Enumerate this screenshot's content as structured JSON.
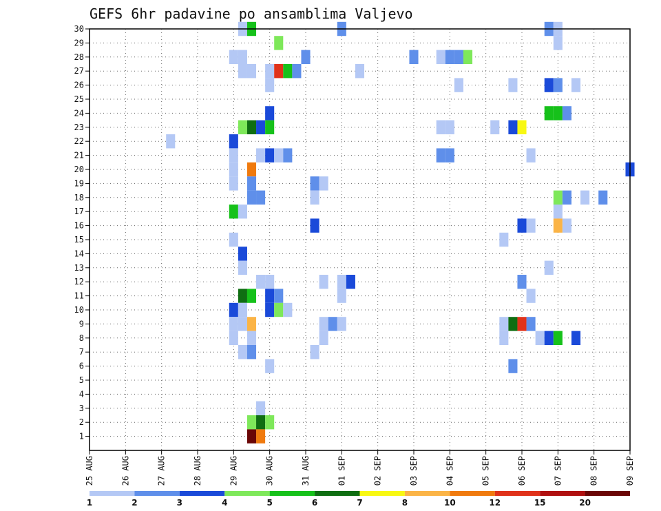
{
  "chart_data": {
    "type": "heatmap",
    "title": "GEFS 6hr padavine po ansamblima Valjevo",
    "x_ticks": [
      "25 AUG",
      "26 AUG",
      "27 AUG",
      "28 AUG",
      "29 AUG",
      "30 AUG",
      "31 AUG",
      "01 SEP",
      "02 SEP",
      "03 SEP",
      "04 SEP",
      "05 SEP",
      "06 SEP",
      "07 SEP",
      "08 SEP",
      "09 SEP"
    ],
    "y_ticks": [
      "1",
      "2",
      "3",
      "4",
      "5",
      "6",
      "7",
      "8",
      "9",
      "10",
      "11",
      "12",
      "13",
      "14",
      "15",
      "16",
      "17",
      "18",
      "19",
      "20",
      "21",
      "22",
      "23",
      "24",
      "25",
      "26",
      "27",
      "28",
      "29",
      "30"
    ],
    "x_range_days": [
      0,
      15
    ],
    "y_range_members": [
      0,
      30
    ],
    "grid": true,
    "legend_position": "bottom",
    "levels": [
      "1",
      "2",
      "3",
      "4",
      "5",
      "6",
      "7",
      "8",
      "10",
      "12",
      "15",
      "20"
    ],
    "level_colors": [
      "#b4c8f5",
      "#5f8fea",
      "#1a4ad9",
      "#7ee85a",
      "#16c11a",
      "#0f6e12",
      "#f8f812",
      "#fbb446",
      "#f07a0e",
      "#e0321a",
      "#b01010",
      "#6a0606"
    ],
    "cells": [
      {
        "member": 30,
        "day": 4.25,
        "level": 0
      },
      {
        "member": 30,
        "day": 4.5,
        "level": 4
      },
      {
        "member": 30,
        "day": 7,
        "level": 1
      },
      {
        "member": 30,
        "day": 12.75,
        "level": 1
      },
      {
        "member": 30,
        "day": 13,
        "level": 0
      },
      {
        "member": 29,
        "day": 5.25,
        "level": 3
      },
      {
        "member": 29,
        "day": 13,
        "level": 0
      },
      {
        "member": 28,
        "day": 4,
        "level": 0
      },
      {
        "member": 28,
        "day": 4.25,
        "level": 0
      },
      {
        "member": 28,
        "day": 6,
        "level": 1
      },
      {
        "member": 28,
        "day": 9,
        "level": 1
      },
      {
        "member": 28,
        "day": 9.75,
        "level": 0
      },
      {
        "member": 28,
        "day": 10,
        "level": 1
      },
      {
        "member": 28,
        "day": 10.25,
        "level": 1
      },
      {
        "member": 28,
        "day": 10.5,
        "level": 3
      },
      {
        "member": 27,
        "day": 4.25,
        "level": 0
      },
      {
        "member": 27,
        "day": 4.5,
        "level": 0
      },
      {
        "member": 27,
        "day": 5,
        "level": 0
      },
      {
        "member": 27,
        "day": 5.25,
        "level": 9
      },
      {
        "member": 27,
        "day": 5.5,
        "level": 4
      },
      {
        "member": 27,
        "day": 5.75,
        "level": 1
      },
      {
        "member": 27,
        "day": 7.5,
        "level": 0
      },
      {
        "member": 26,
        "day": 5,
        "level": 0
      },
      {
        "member": 26,
        "day": 10.25,
        "level": 0
      },
      {
        "member": 26,
        "day": 11.75,
        "level": 0
      },
      {
        "member": 26,
        "day": 12.75,
        "level": 2
      },
      {
        "member": 26,
        "day": 13,
        "level": 1
      },
      {
        "member": 26,
        "day": 13.5,
        "level": 0
      },
      {
        "member": 24,
        "day": 5,
        "level": 2
      },
      {
        "member": 24,
        "day": 12.75,
        "level": 4
      },
      {
        "member": 24,
        "day": 13,
        "level": 4
      },
      {
        "member": 24,
        "day": 13.25,
        "level": 1
      },
      {
        "member": 23,
        "day": 4.25,
        "level": 3
      },
      {
        "member": 23,
        "day": 4.5,
        "level": 5
      },
      {
        "member": 23,
        "day": 4.75,
        "level": 2
      },
      {
        "member": 23,
        "day": 5,
        "level": 4
      },
      {
        "member": 23,
        "day": 9.75,
        "level": 0
      },
      {
        "member": 23,
        "day": 10,
        "level": 0
      },
      {
        "member": 23,
        "day": 11.25,
        "level": 0
      },
      {
        "member": 23,
        "day": 11.75,
        "level": 2
      },
      {
        "member": 23,
        "day": 12,
        "level": 6
      },
      {
        "member": 22,
        "day": 2.25,
        "level": 0
      },
      {
        "member": 22,
        "day": 4,
        "level": 2
      },
      {
        "member": 21,
        "day": 4,
        "level": 0
      },
      {
        "member": 21,
        "day": 4.75,
        "level": 0
      },
      {
        "member": 21,
        "day": 5,
        "level": 2
      },
      {
        "member": 21,
        "day": 5.25,
        "level": 0
      },
      {
        "member": 21,
        "day": 5.5,
        "level": 1
      },
      {
        "member": 21,
        "day": 9.75,
        "level": 1
      },
      {
        "member": 21,
        "day": 10,
        "level": 1
      },
      {
        "member": 21,
        "day": 12.25,
        "level": 0
      },
      {
        "member": 20,
        "day": 4,
        "level": 0
      },
      {
        "member": 20,
        "day": 4.5,
        "level": 8
      },
      {
        "member": 20,
        "day": 15,
        "level": 2
      },
      {
        "member": 19,
        "day": 4,
        "level": 0
      },
      {
        "member": 19,
        "day": 4.5,
        "level": 1
      },
      {
        "member": 19,
        "day": 6.25,
        "level": 1
      },
      {
        "member": 19,
        "day": 6.5,
        "level": 0
      },
      {
        "member": 18,
        "day": 4.5,
        "level": 1
      },
      {
        "member": 18,
        "day": 4.75,
        "level": 1
      },
      {
        "member": 18,
        "day": 6.25,
        "level": 0
      },
      {
        "member": 18,
        "day": 13,
        "level": 3
      },
      {
        "member": 18,
        "day": 13.25,
        "level": 1
      },
      {
        "member": 18,
        "day": 13.75,
        "level": 0
      },
      {
        "member": 18,
        "day": 14.25,
        "level": 1
      },
      {
        "member": 17,
        "day": 4,
        "level": 4
      },
      {
        "member": 17,
        "day": 4.25,
        "level": 0
      },
      {
        "member": 17,
        "day": 13,
        "level": 0
      },
      {
        "member": 16,
        "day": 6.25,
        "level": 2
      },
      {
        "member": 16,
        "day": 12,
        "level": 2
      },
      {
        "member": 16,
        "day": 12.25,
        "level": 0
      },
      {
        "member": 16,
        "day": 13,
        "level": 7
      },
      {
        "member": 16,
        "day": 13.25,
        "level": 0
      },
      {
        "member": 15,
        "day": 4,
        "level": 0
      },
      {
        "member": 15,
        "day": 11.5,
        "level": 0
      },
      {
        "member": 14,
        "day": 4.25,
        "level": 2
      },
      {
        "member": 13,
        "day": 4.25,
        "level": 0
      },
      {
        "member": 13,
        "day": 12.75,
        "level": 0
      },
      {
        "member": 12,
        "day": 4.75,
        "level": 0
      },
      {
        "member": 12,
        "day": 5,
        "level": 0
      },
      {
        "member": 12,
        "day": 6.5,
        "level": 0
      },
      {
        "member": 12,
        "day": 7,
        "level": 0
      },
      {
        "member": 12,
        "day": 7.25,
        "level": 2
      },
      {
        "member": 12,
        "day": 12,
        "level": 1
      },
      {
        "member": 11,
        "day": 4.25,
        "level": 5
      },
      {
        "member": 11,
        "day": 4.5,
        "level": 4
      },
      {
        "member": 11,
        "day": 5,
        "level": 2
      },
      {
        "member": 11,
        "day": 5.25,
        "level": 1
      },
      {
        "member": 11,
        "day": 7,
        "level": 0
      },
      {
        "member": 11,
        "day": 12.25,
        "level": 0
      },
      {
        "member": 10,
        "day": 4,
        "level": 2
      },
      {
        "member": 10,
        "day": 4.25,
        "level": 0
      },
      {
        "member": 10,
        "day": 5,
        "level": 2
      },
      {
        "member": 10,
        "day": 5.25,
        "level": 3
      },
      {
        "member": 10,
        "day": 5.5,
        "level": 0
      },
      {
        "member": 9,
        "day": 4,
        "level": 0
      },
      {
        "member": 9,
        "day": 4.25,
        "level": 0
      },
      {
        "member": 9,
        "day": 4.5,
        "level": 7
      },
      {
        "member": 9,
        "day": 6.5,
        "level": 0
      },
      {
        "member": 9,
        "day": 6.75,
        "level": 1
      },
      {
        "member": 9,
        "day": 7,
        "level": 0
      },
      {
        "member": 9,
        "day": 11.5,
        "level": 0
      },
      {
        "member": 9,
        "day": 11.75,
        "level": 5
      },
      {
        "member": 9,
        "day": 12,
        "level": 9
      },
      {
        "member": 9,
        "day": 12.25,
        "level": 1
      },
      {
        "member": 8,
        "day": 4,
        "level": 0
      },
      {
        "member": 8,
        "day": 4.5,
        "level": 0
      },
      {
        "member": 8,
        "day": 6.5,
        "level": 0
      },
      {
        "member": 8,
        "day": 11.5,
        "level": 0
      },
      {
        "member": 8,
        "day": 12.5,
        "level": 0
      },
      {
        "member": 8,
        "day": 12.75,
        "level": 2
      },
      {
        "member": 8,
        "day": 13,
        "level": 4
      },
      {
        "member": 8,
        "day": 13.5,
        "level": 2
      },
      {
        "member": 7,
        "day": 4.25,
        "level": 0
      },
      {
        "member": 7,
        "day": 4.5,
        "level": 1
      },
      {
        "member": 7,
        "day": 6.25,
        "level": 0
      },
      {
        "member": 6,
        "day": 5,
        "level": 0
      },
      {
        "member": 6,
        "day": 11.75,
        "level": 1
      },
      {
        "member": 3,
        "day": 4.75,
        "level": 0
      },
      {
        "member": 2,
        "day": 4.5,
        "level": 3
      },
      {
        "member": 2,
        "day": 4.75,
        "level": 5
      },
      {
        "member": 2,
        "day": 5,
        "level": 3
      },
      {
        "member": 1,
        "day": 4.5,
        "level": 11
      },
      {
        "member": 1,
        "day": 4.75,
        "level": 8
      }
    ]
  }
}
